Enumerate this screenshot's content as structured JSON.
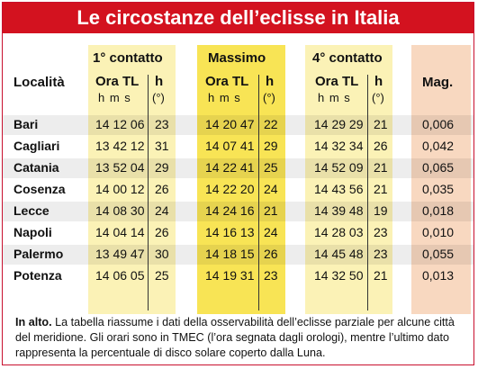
{
  "title": "Le circostanze dell’eclisse in Italia",
  "headers": {
    "localita": "Località",
    "c1": "1° contatto",
    "c2": "Massimo",
    "c3": "4° contatto",
    "ora": "Ora TL",
    "hms": "h m s",
    "h": "h",
    "deg": "(°)",
    "mag": "Mag."
  },
  "rows": [
    {
      "loc": "Bari",
      "c1": "14 12 06",
      "h1": "23",
      "c2": "14 20 47",
      "h2": "22",
      "c3": "14 29 29",
      "h3": "21",
      "mag": "0,006"
    },
    {
      "loc": "Cagliari",
      "c1": "13 42 12",
      "h1": "31",
      "c2": "14 07 41",
      "h2": "29",
      "c3": "14 32 34",
      "h3": "26",
      "mag": "0,042"
    },
    {
      "loc": "Catania",
      "c1": "13 52 04",
      "h1": "29",
      "c2": "14 22 41",
      "h2": "25",
      "c3": "14 52 09",
      "h3": "21",
      "mag": "0,065"
    },
    {
      "loc": "Cosenza",
      "c1": "14 00 12",
      "h1": "26",
      "c2": "14 22 20",
      "h2": "24",
      "c3": "14 43 56",
      "h3": "21",
      "mag": "0,035"
    },
    {
      "loc": "Lecce",
      "c1": "14 08 30",
      "h1": "24",
      "c2": "14 24 16",
      "h2": "21",
      "c3": "14 39 48",
      "h3": "19",
      "mag": "0,018"
    },
    {
      "loc": "Napoli",
      "c1": "14 04 14",
      "h1": "26",
      "c2": "14 16 13",
      "h2": "24",
      "c3": "14 28 03",
      "h3": "23",
      "mag": "0,010"
    },
    {
      "loc": "Palermo",
      "c1": "13 49 47",
      "h1": "30",
      "c2": "14 18 15",
      "h2": "26",
      "c3": "14 45 48",
      "h3": "23",
      "mag": "0,055"
    },
    {
      "loc": "Potenza",
      "c1": "14 06 05",
      "h1": "25",
      "c2": "14 19 31",
      "h2": "23",
      "c3": "14 32 50",
      "h3": "21",
      "mag": "0,013"
    }
  ],
  "caption": {
    "lead": "In alto.",
    "text": " La tabella riassume i dati della osservabilità dell’eclisse parziale per alcune città del meridione. Gli orari sono in TMEC (l’ora segnata dagli orologi), mentre l’ultimo dato rappresenta la percentuale di disco solare coperto dalla Luna."
  }
}
